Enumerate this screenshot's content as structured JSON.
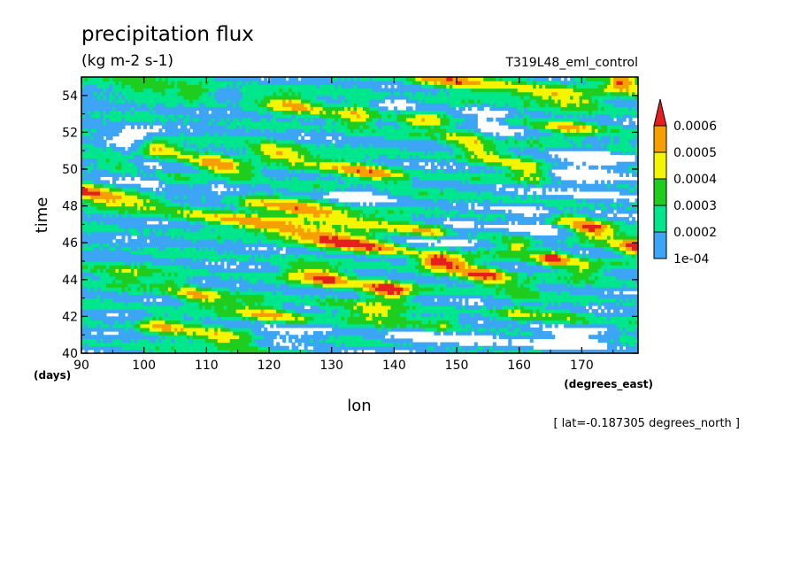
{
  "chart_data": {
    "type": "heatmap",
    "title": "precipitation flux",
    "subtitle": "(kg m-2 s-1)",
    "run_label": "T319L48_eml_control",
    "xlabel": "lon",
    "xunits": "(degrees_east)",
    "ylabel": "time",
    "yunits": "(days)",
    "annotation": "[ lat=-0.187305 degrees_north ]",
    "xlim": [
      90,
      179
    ],
    "ylim": [
      40,
      55
    ],
    "xticks": [
      90,
      100,
      110,
      120,
      130,
      140,
      150,
      160,
      170
    ],
    "yticks": [
      40,
      42,
      44,
      46,
      48,
      50,
      52,
      54
    ],
    "colorbar": {
      "levels": [
        "1e-04",
        "0.0002",
        "0.0003",
        "0.0004",
        "0.0005",
        "0.0006"
      ],
      "colors": [
        "#ffffff",
        "#3ca5f5",
        "#00e68c",
        "#1ecd1e",
        "#f5f500",
        "#f5a000",
        "#e61e1e"
      ],
      "extend": "max"
    },
    "features": [
      {
        "kind": "band",
        "from": [
          90,
          48.8
        ],
        "to": [
          150,
          45.0
        ],
        "peak": 0.00065
      },
      {
        "kind": "band",
        "from": [
          118,
          48.2
        ],
        "to": [
          146,
          46.6
        ],
        "peak": 0.00062
      },
      {
        "kind": "band",
        "from": [
          102,
          51.2
        ],
        "to": [
          116,
          49.8
        ],
        "peak": 0.00062
      },
      {
        "kind": "band",
        "from": [
          120,
          51.0
        ],
        "to": [
          140,
          49.5
        ],
        "peak": 0.00055
      },
      {
        "kind": "band",
        "from": [
          125,
          44.4
        ],
        "to": [
          140,
          43.4
        ],
        "peak": 0.00065
      },
      {
        "kind": "band",
        "from": [
          147,
          45.0
        ],
        "to": [
          160,
          43.6
        ],
        "peak": 0.00062
      },
      {
        "kind": "band",
        "from": [
          160,
          45.8
        ],
        "to": [
          170,
          44.6
        ],
        "peak": 0.00062
      },
      {
        "kind": "band",
        "from": [
          168,
          47.2
        ],
        "to": [
          179,
          45.8
        ],
        "peak": 0.00068
      },
      {
        "kind": "band",
        "from": [
          172,
          55.2
        ],
        "to": [
          179,
          54.4
        ],
        "peak": 0.00065
      },
      {
        "kind": "band",
        "from": [
          145,
          55.0
        ],
        "to": [
          170,
          53.8
        ],
        "peak": 0.00055
      },
      {
        "kind": "band",
        "from": [
          118,
          54.0
        ],
        "to": [
          134,
          52.7
        ],
        "peak": 0.0005
      },
      {
        "kind": "band",
        "from": [
          150,
          51.6
        ],
        "to": [
          162,
          49.8
        ],
        "peak": 0.0005
      },
      {
        "kind": "band",
        "from": [
          102,
          41.6
        ],
        "to": [
          118,
          40.4
        ],
        "peak": 0.0005
      },
      {
        "kind": "band",
        "from": [
          108,
          43.2
        ],
        "to": [
          124,
          41.8
        ],
        "peak": 0.00052
      },
      {
        "kind": "band",
        "from": [
          92,
          44.6
        ],
        "to": [
          104,
          43.8
        ],
        "peak": 0.0004
      },
      {
        "kind": "band",
        "from": [
          130,
          42.6
        ],
        "to": [
          148,
          41.6
        ],
        "peak": 0.00045
      },
      {
        "kind": "band",
        "from": [
          92,
          55.0
        ],
        "to": [
          108,
          54.2
        ],
        "peak": 0.0004
      },
      {
        "kind": "band",
        "from": [
          135,
          53.4
        ],
        "to": [
          152,
          52.0
        ],
        "peak": 0.00045
      },
      {
        "kind": "band",
        "from": [
          160,
          52.8
        ],
        "to": [
          176,
          51.6
        ],
        "peak": 0.00045
      },
      {
        "kind": "band",
        "from": [
          95,
          50.4
        ],
        "to": [
          108,
          49.2
        ],
        "peak": 0.0004
      },
      {
        "kind": "band",
        "from": [
          160,
          42.2
        ],
        "to": [
          176,
          41.4
        ],
        "peak": 0.0004
      },
      {
        "kind": "dry",
        "center": [
          103,
          49.6
        ],
        "size": [
          9,
          1.6
        ]
      },
      {
        "kind": "dry",
        "center": [
          145,
          46.2
        ],
        "size": [
          7,
          1.3
        ]
      },
      {
        "kind": "dry",
        "center": [
          172,
          49.8
        ],
        "size": [
          7,
          1.8
        ]
      },
      {
        "kind": "dry",
        "center": [
          162,
          46.8
        ],
        "size": [
          5,
          1.2
        ]
      },
      {
        "kind": "dry",
        "center": [
          98,
          51.8
        ],
        "size": [
          6,
          0.6
        ]
      },
      {
        "kind": "dry",
        "center": [
          135,
          48.5
        ],
        "size": [
          5,
          0.5
        ]
      },
      {
        "kind": "dry",
        "center": [
          150,
          40.8
        ],
        "size": [
          9,
          0.8
        ]
      },
      {
        "kind": "dry",
        "center": [
          170,
          41.0
        ],
        "size": [
          8,
          1.0
        ]
      },
      {
        "kind": "dry",
        "center": [
          140,
          53.2
        ],
        "size": [
          5,
          0.6
        ]
      },
      {
        "kind": "dry",
        "center": [
          156,
          52.6
        ],
        "size": [
          7,
          0.8
        ]
      },
      {
        "kind": "dry",
        "center": [
          124,
          41.0
        ],
        "size": [
          6,
          0.6
        ]
      }
    ]
  }
}
